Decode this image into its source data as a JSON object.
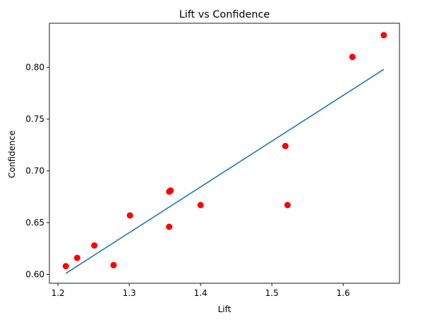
{
  "chart_data": {
    "type": "scatter",
    "title": "Lift vs Confidence",
    "xlabel": "Lift",
    "ylabel": "Confidence",
    "xlim": [
      1.188,
      1.679
    ],
    "ylim": [
      0.5915,
      0.8425
    ],
    "x_ticks": [
      1.2,
      1.3,
      1.4,
      1.5,
      1.6
    ],
    "x_tick_labels": [
      "1.2",
      "1.3",
      "1.4",
      "1.5",
      "1.6"
    ],
    "y_ticks": [
      0.6,
      0.65,
      0.7,
      0.75,
      0.8
    ],
    "y_tick_labels": [
      "0.60",
      "0.65",
      "0.70",
      "0.75",
      "0.80"
    ],
    "grid": false,
    "series": [
      {
        "kind": "scatter",
        "color": "#ff0000",
        "points": [
          {
            "x": 1.211,
            "y": 0.608
          },
          {
            "x": 1.227,
            "y": 0.616
          },
          {
            "x": 1.251,
            "y": 0.628
          },
          {
            "x": 1.278,
            "y": 0.609
          },
          {
            "x": 1.301,
            "y": 0.657
          },
          {
            "x": 1.356,
            "y": 0.646
          },
          {
            "x": 1.356,
            "y": 0.68
          },
          {
            "x": 1.358,
            "y": 0.681
          },
          {
            "x": 1.4,
            "y": 0.667
          },
          {
            "x": 1.519,
            "y": 0.724
          },
          {
            "x": 1.522,
            "y": 0.667
          },
          {
            "x": 1.613,
            "y": 0.81
          },
          {
            "x": 1.657,
            "y": 0.831
          }
        ]
      },
      {
        "kind": "line",
        "color": "#1f77b4",
        "points": [
          {
            "x": 1.211,
            "y": 0.601
          },
          {
            "x": 1.657,
            "y": 0.798
          }
        ]
      }
    ]
  }
}
